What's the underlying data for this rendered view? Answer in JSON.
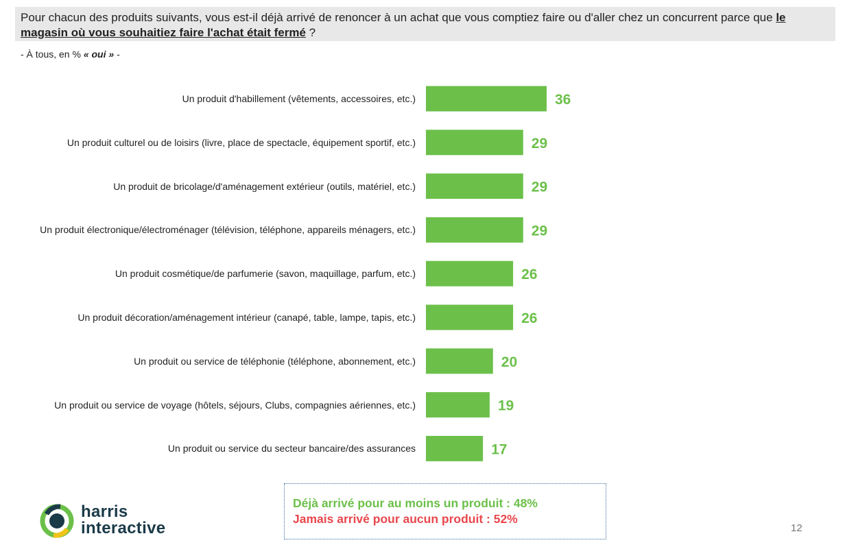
{
  "question": {
    "before": "Pour chacun des produits suivants, vous est-il déjà arrivé de renoncer à un achat que vous comptiez faire ou d'aller chez un concurrent parce que ",
    "emphasis": "le magasin où vous souhaitiez faire l'achat était fermé",
    "after": " ?"
  },
  "subtitle": {
    "prefix": "- À tous, en % ",
    "emphasis": "« oui »",
    "suffix": " -"
  },
  "chart_data": {
    "type": "bar",
    "orientation": "horizontal",
    "categories": [
      "Un produit d'habillement (vêtements, accessoires, etc.)",
      "Un produit culturel ou de loisirs (livre, place de spectacle, équipement sportif, etc.)",
      "Un produit de bricolage/d'aménagement extérieur (outils, matériel, etc.)",
      "Un produit électronique/électroménager (télévision, téléphone, appareils ménagers, etc.)",
      "Un produit cosmétique/de parfumerie (savon, maquillage, parfum, etc.)",
      "Un produit décoration/aménagement intérieur (canapé, table, lampe, tapis, etc.)",
      "Un produit ou service de téléphonie (téléphone, abonnement, etc.)",
      "Un produit ou service de voyage (hôtels, séjours, Clubs, compagnies aériennes, etc.)",
      "Un produit ou service du secteur bancaire/des assurances"
    ],
    "values": [
      36,
      29,
      29,
      29,
      26,
      26,
      20,
      19,
      17
    ],
    "bar_color": "#6cc04a",
    "label_color": "#6cc04a",
    "grid": false,
    "xlim": [
      0,
      36
    ]
  },
  "summary": {
    "yes_line": "Déjà arrivé pour au moins un produit : 48%",
    "no_line": "Jamais arrivé pour aucun produit : 52%",
    "yes_color": "#6cc04a",
    "no_color": "#e8474c"
  },
  "logo": {
    "line1": "harris",
    "line2": "interactive"
  },
  "page_number": "12"
}
